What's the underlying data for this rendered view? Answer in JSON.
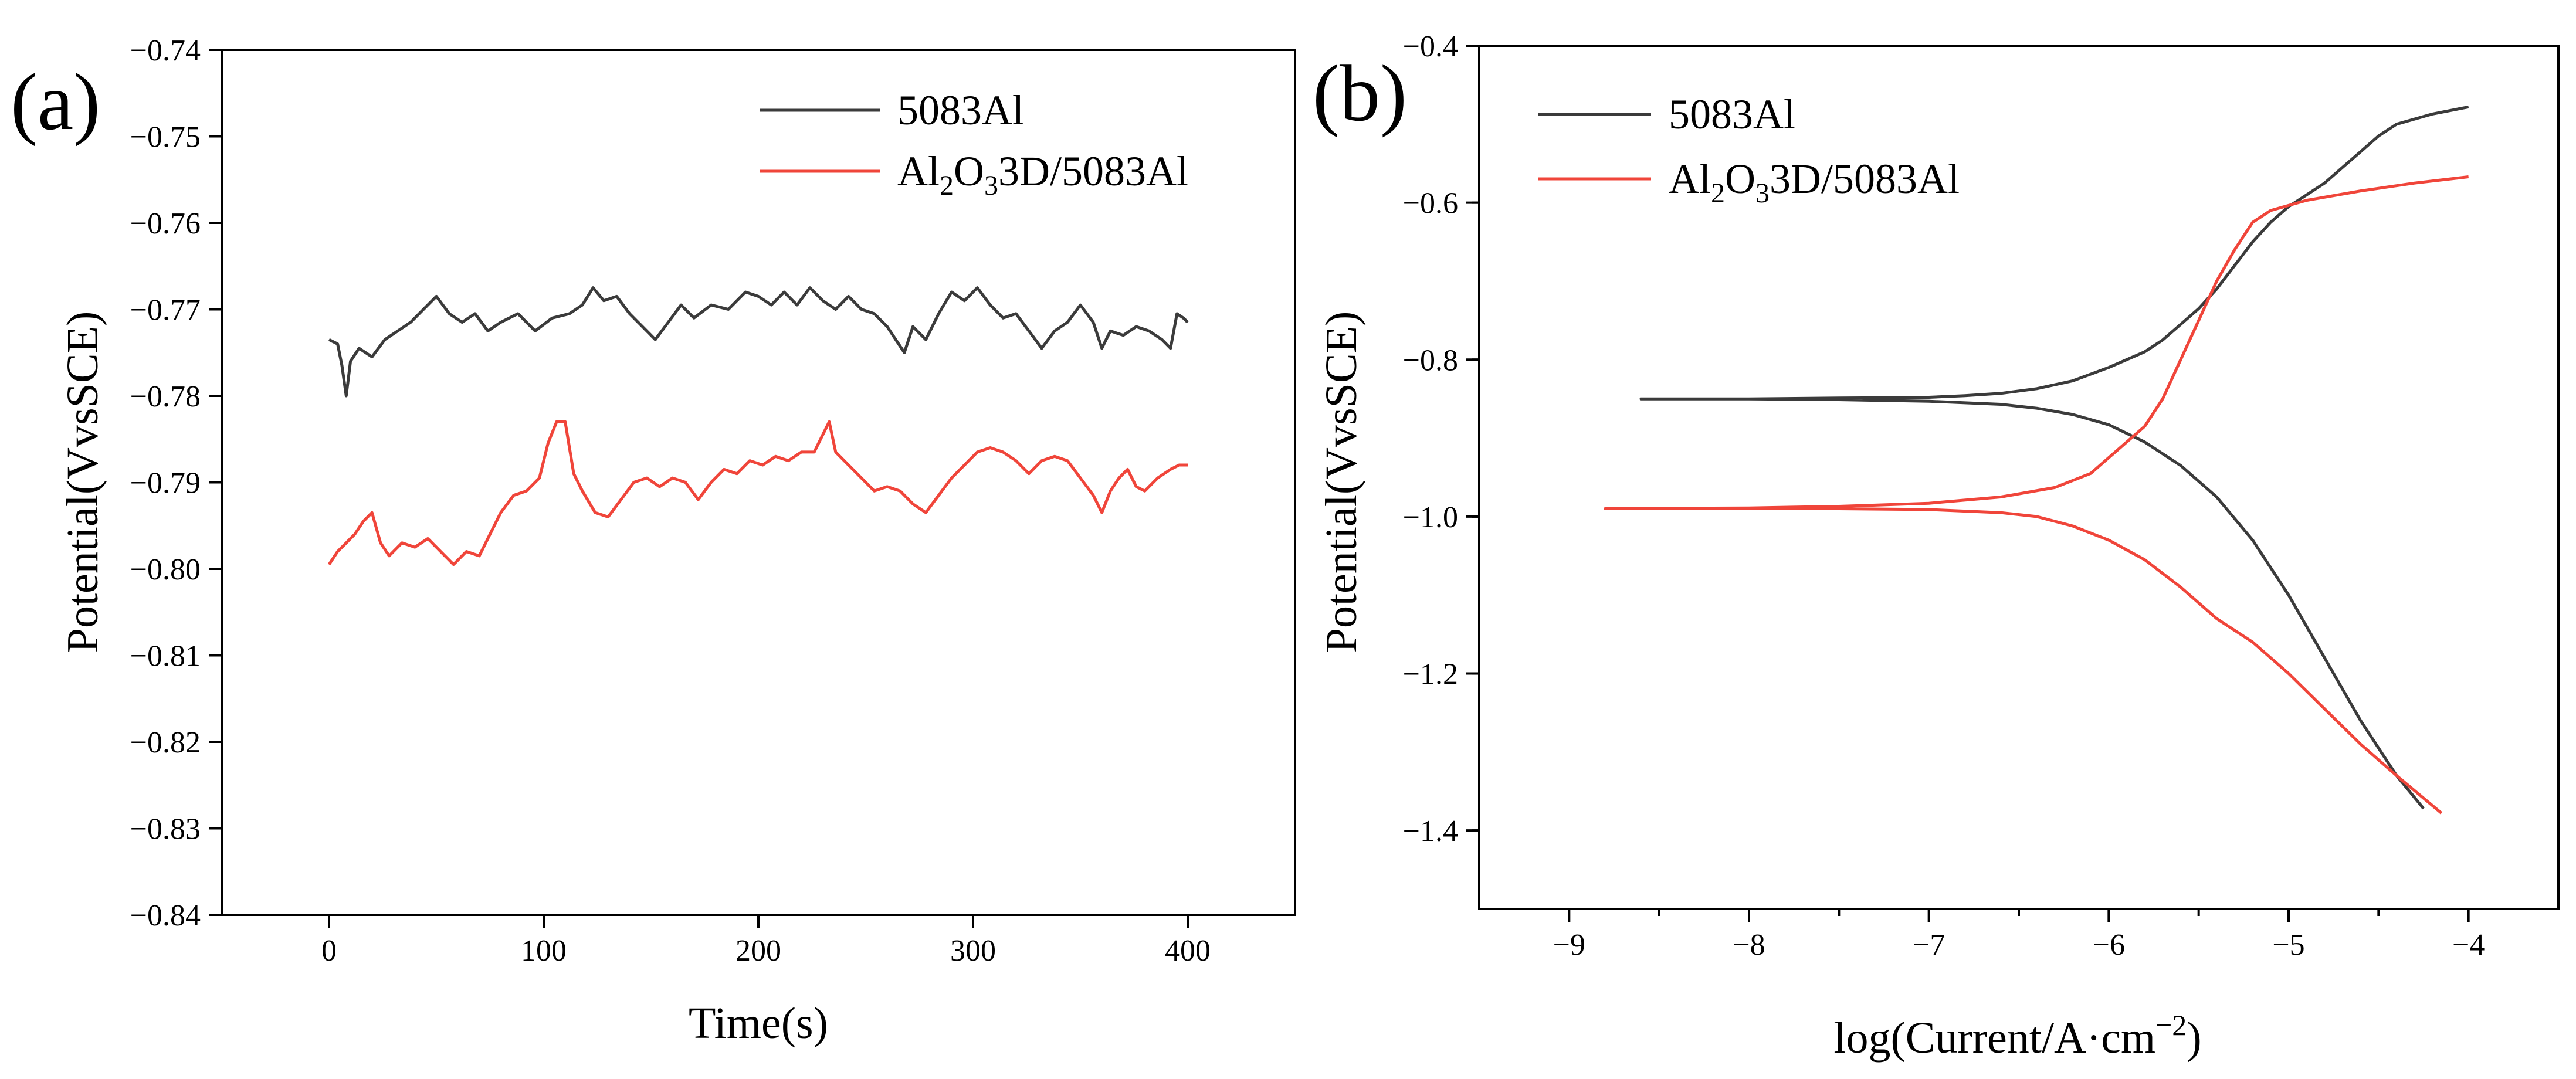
{
  "figure": {
    "panel_a_label": "(a)",
    "panel_b_label": "(b)"
  },
  "chart_data": [
    {
      "id": "a",
      "type": "line",
      "xlabel": "Time(s)",
      "ylabel": "Potential(VvsSCE)",
      "xlim": [
        -50,
        450
      ],
      "ylim": [
        -0.84,
        -0.74
      ],
      "xticks": [
        0,
        100,
        200,
        300,
        400
      ],
      "xtick_labels": [
        "0",
        "100",
        "200",
        "300",
        "400"
      ],
      "yticks": [
        -0.84,
        -0.83,
        -0.82,
        -0.81,
        -0.8,
        -0.79,
        -0.78,
        -0.77,
        -0.76,
        -0.75,
        -0.74
      ],
      "ytick_labels": [
        "−0.84",
        "−0.83",
        "−0.82",
        "−0.81",
        "−0.80",
        "−0.79",
        "−0.78",
        "−0.77",
        "−0.76",
        "−0.75",
        "−0.74"
      ],
      "legend_position": "top-right",
      "series": [
        {
          "name": "5083Al",
          "color": "#3b3b3b",
          "points": [
            [
              0,
              -0.7735
            ],
            [
              4,
              -0.774
            ],
            [
              6,
              -0.7765
            ],
            [
              8,
              -0.78
            ],
            [
              10,
              -0.776
            ],
            [
              14,
              -0.7745
            ],
            [
              20,
              -0.7755
            ],
            [
              26,
              -0.7735
            ],
            [
              32,
              -0.7725
            ],
            [
              38,
              -0.7715
            ],
            [
              44,
              -0.77
            ],
            [
              50,
              -0.7685
            ],
            [
              56,
              -0.7705
            ],
            [
              62,
              -0.7715
            ],
            [
              68,
              -0.7705
            ],
            [
              74,
              -0.7725
            ],
            [
              80,
              -0.7715
            ],
            [
              88,
              -0.7705
            ],
            [
              96,
              -0.7725
            ],
            [
              104,
              -0.771
            ],
            [
              112,
              -0.7705
            ],
            [
              118,
              -0.7695
            ],
            [
              123,
              -0.7675
            ],
            [
              128,
              -0.769
            ],
            [
              134,
              -0.7685
            ],
            [
              140,
              -0.7705
            ],
            [
              146,
              -0.772
            ],
            [
              152,
              -0.7735
            ],
            [
              158,
              -0.7715
            ],
            [
              164,
              -0.7695
            ],
            [
              170,
              -0.771
            ],
            [
              178,
              -0.7695
            ],
            [
              186,
              -0.77
            ],
            [
              194,
              -0.768
            ],
            [
              200,
              -0.7685
            ],
            [
              206,
              -0.7695
            ],
            [
              212,
              -0.768
            ],
            [
              218,
              -0.7695
            ],
            [
              224,
              -0.7675
            ],
            [
              230,
              -0.769
            ],
            [
              236,
              -0.77
            ],
            [
              242,
              -0.7685
            ],
            [
              248,
              -0.77
            ],
            [
              254,
              -0.7705
            ],
            [
              260,
              -0.772
            ],
            [
              264,
              -0.7735
            ],
            [
              268,
              -0.775
            ],
            [
              272,
              -0.772
            ],
            [
              278,
              -0.7735
            ],
            [
              284,
              -0.7705
            ],
            [
              290,
              -0.768
            ],
            [
              296,
              -0.769
            ],
            [
              302,
              -0.7675
            ],
            [
              308,
              -0.7695
            ],
            [
              314,
              -0.771
            ],
            [
              320,
              -0.7705
            ],
            [
              326,
              -0.7725
            ],
            [
              332,
              -0.7745
            ],
            [
              338,
              -0.7725
            ],
            [
              344,
              -0.7715
            ],
            [
              350,
              -0.7695
            ],
            [
              356,
              -0.7715
            ],
            [
              360,
              -0.7745
            ],
            [
              364,
              -0.7725
            ],
            [
              370,
              -0.773
            ],
            [
              376,
              -0.772
            ],
            [
              382,
              -0.7725
            ],
            [
              388,
              -0.7735
            ],
            [
              392,
              -0.7745
            ],
            [
              395,
              -0.7705
            ],
            [
              398,
              -0.771
            ],
            [
              400,
              -0.7715
            ]
          ]
        },
        {
          "name": "Al₂O₃3D/5083Al",
          "color": "#f0453a",
          "points": [
            [
              0,
              -0.7995
            ],
            [
              4,
              -0.798
            ],
            [
              8,
              -0.797
            ],
            [
              12,
              -0.796
            ],
            [
              16,
              -0.7945
            ],
            [
              20,
              -0.7935
            ],
            [
              24,
              -0.797
            ],
            [
              28,
              -0.7985
            ],
            [
              34,
              -0.797
            ],
            [
              40,
              -0.7975
            ],
            [
              46,
              -0.7965
            ],
            [
              52,
              -0.798
            ],
            [
              58,
              -0.7995
            ],
            [
              64,
              -0.798
            ],
            [
              70,
              -0.7985
            ],
            [
              74,
              -0.7965
            ],
            [
              80,
              -0.7935
            ],
            [
              86,
              -0.7915
            ],
            [
              92,
              -0.791
            ],
            [
              98,
              -0.7895
            ],
            [
              102,
              -0.7855
            ],
            [
              106,
              -0.783
            ],
            [
              110,
              -0.783
            ],
            [
              114,
              -0.789
            ],
            [
              118,
              -0.791
            ],
            [
              124,
              -0.7935
            ],
            [
              130,
              -0.794
            ],
            [
              136,
              -0.792
            ],
            [
              142,
              -0.79
            ],
            [
              148,
              -0.7895
            ],
            [
              154,
              -0.7905
            ],
            [
              160,
              -0.7895
            ],
            [
              166,
              -0.79
            ],
            [
              172,
              -0.792
            ],
            [
              178,
              -0.79
            ],
            [
              184,
              -0.7885
            ],
            [
              190,
              -0.789
            ],
            [
              196,
              -0.7875
            ],
            [
              202,
              -0.788
            ],
            [
              208,
              -0.787
            ],
            [
              214,
              -0.7875
            ],
            [
              220,
              -0.7865
            ],
            [
              226,
              -0.7865
            ],
            [
              230,
              -0.7845
            ],
            [
              233,
              -0.783
            ],
            [
              236,
              -0.7865
            ],
            [
              242,
              -0.788
            ],
            [
              248,
              -0.7895
            ],
            [
              254,
              -0.791
            ],
            [
              260,
              -0.7905
            ],
            [
              266,
              -0.791
            ],
            [
              272,
              -0.7925
            ],
            [
              278,
              -0.7935
            ],
            [
              284,
              -0.7915
            ],
            [
              290,
              -0.7895
            ],
            [
              296,
              -0.788
            ],
            [
              302,
              -0.7865
            ],
            [
              308,
              -0.786
            ],
            [
              314,
              -0.7865
            ],
            [
              320,
              -0.7875
            ],
            [
              326,
              -0.789
            ],
            [
              332,
              -0.7875
            ],
            [
              338,
              -0.787
            ],
            [
              344,
              -0.7875
            ],
            [
              350,
              -0.7895
            ],
            [
              356,
              -0.7915
            ],
            [
              360,
              -0.7935
            ],
            [
              364,
              -0.791
            ],
            [
              368,
              -0.7895
            ],
            [
              372,
              -0.7885
            ],
            [
              376,
              -0.7905
            ],
            [
              380,
              -0.791
            ],
            [
              386,
              -0.7895
            ],
            [
              392,
              -0.7885
            ],
            [
              396,
              -0.788
            ],
            [
              400,
              -0.788
            ]
          ]
        }
      ]
    },
    {
      "id": "b",
      "type": "line",
      "xlabel": "log(Current/A·cm⁻²)",
      "ylabel": "Potential(VvsSCE)",
      "xlim": [
        -9.5,
        -3.5
      ],
      "ylim": [
        -1.5,
        -0.4
      ],
      "xticks": [
        -9,
        -8,
        -7,
        -6,
        -5,
        -4
      ],
      "xtick_labels": [
        "−9",
        "−8",
        "−7",
        "−6",
        "−5",
        "−4"
      ],
      "yticks": [
        -1.4,
        -1.2,
        -1.0,
        -0.8,
        -0.6,
        -0.4
      ],
      "ytick_labels": [
        "−1.4",
        "−1.2",
        "−1.0",
        "−0.8",
        "−0.6",
        "−0.4"
      ],
      "legend_position": "top-left",
      "series": [
        {
          "name": "5083Al",
          "color": "#3b3b3b",
          "points": [
            [
              -4.0,
              -0.478
            ],
            [
              -4.2,
              -0.487
            ],
            [
              -4.4,
              -0.5
            ],
            [
              -4.5,
              -0.515
            ],
            [
              -4.6,
              -0.535
            ],
            [
              -4.7,
              -0.555
            ],
            [
              -4.8,
              -0.575
            ],
            [
              -4.9,
              -0.59
            ],
            [
              -5.0,
              -0.605
            ],
            [
              -5.1,
              -0.625
            ],
            [
              -5.2,
              -0.65
            ],
            [
              -5.3,
              -0.68
            ],
            [
              -5.4,
              -0.71
            ],
            [
              -5.5,
              -0.735
            ],
            [
              -5.6,
              -0.755
            ],
            [
              -5.7,
              -0.775
            ],
            [
              -5.8,
              -0.79
            ],
            [
              -5.9,
              -0.8
            ],
            [
              -6.0,
              -0.81
            ],
            [
              -6.2,
              -0.827
            ],
            [
              -6.4,
              -0.837
            ],
            [
              -6.6,
              -0.843
            ],
            [
              -6.8,
              -0.846
            ],
            [
              -7.0,
              -0.848
            ],
            [
              -7.5,
              -0.849
            ],
            [
              -8.0,
              -0.85
            ],
            [
              -8.6,
              -0.85
            ],
            [
              -8.0,
              -0.85
            ],
            [
              -7.5,
              -0.851
            ],
            [
              -7.0,
              -0.853
            ],
            [
              -6.6,
              -0.857
            ],
            [
              -6.4,
              -0.862
            ],
            [
              -6.2,
              -0.87
            ],
            [
              -6.0,
              -0.883
            ],
            [
              -5.8,
              -0.905
            ],
            [
              -5.6,
              -0.935
            ],
            [
              -5.4,
              -0.975
            ],
            [
              -5.2,
              -1.03
            ],
            [
              -5.0,
              -1.1
            ],
            [
              -4.8,
              -1.18
            ],
            [
              -4.6,
              -1.26
            ],
            [
              -4.4,
              -1.33
            ],
            [
              -4.25,
              -1.372
            ]
          ]
        },
        {
          "name": "Al₂O₃3D/5083Al",
          "color": "#f0453a",
          "points": [
            [
              -4.0,
              -0.567
            ],
            [
              -4.3,
              -0.575
            ],
            [
              -4.6,
              -0.585
            ],
            [
              -4.9,
              -0.597
            ],
            [
              -5.1,
              -0.61
            ],
            [
              -5.2,
              -0.625
            ],
            [
              -5.3,
              -0.66
            ],
            [
              -5.4,
              -0.7
            ],
            [
              -5.5,
              -0.75
            ],
            [
              -5.6,
              -0.8
            ],
            [
              -5.7,
              -0.85
            ],
            [
              -5.8,
              -0.885
            ],
            [
              -5.9,
              -0.905
            ],
            [
              -6.0,
              -0.925
            ],
            [
              -6.1,
              -0.945
            ],
            [
              -6.3,
              -0.963
            ],
            [
              -6.6,
              -0.975
            ],
            [
              -7.0,
              -0.983
            ],
            [
              -7.5,
              -0.987
            ],
            [
              -8.0,
              -0.989
            ],
            [
              -8.8,
              -0.99
            ],
            [
              -8.0,
              -0.99
            ],
            [
              -7.5,
              -0.99
            ],
            [
              -7.0,
              -0.991
            ],
            [
              -6.6,
              -0.995
            ],
            [
              -6.4,
              -1.0
            ],
            [
              -6.2,
              -1.012
            ],
            [
              -6.0,
              -1.03
            ],
            [
              -5.8,
              -1.055
            ],
            [
              -5.6,
              -1.09
            ],
            [
              -5.4,
              -1.13
            ],
            [
              -5.2,
              -1.16
            ],
            [
              -5.0,
              -1.2
            ],
            [
              -4.8,
              -1.245
            ],
            [
              -4.6,
              -1.29
            ],
            [
              -4.4,
              -1.33
            ],
            [
              -4.15,
              -1.378
            ]
          ]
        }
      ]
    }
  ]
}
